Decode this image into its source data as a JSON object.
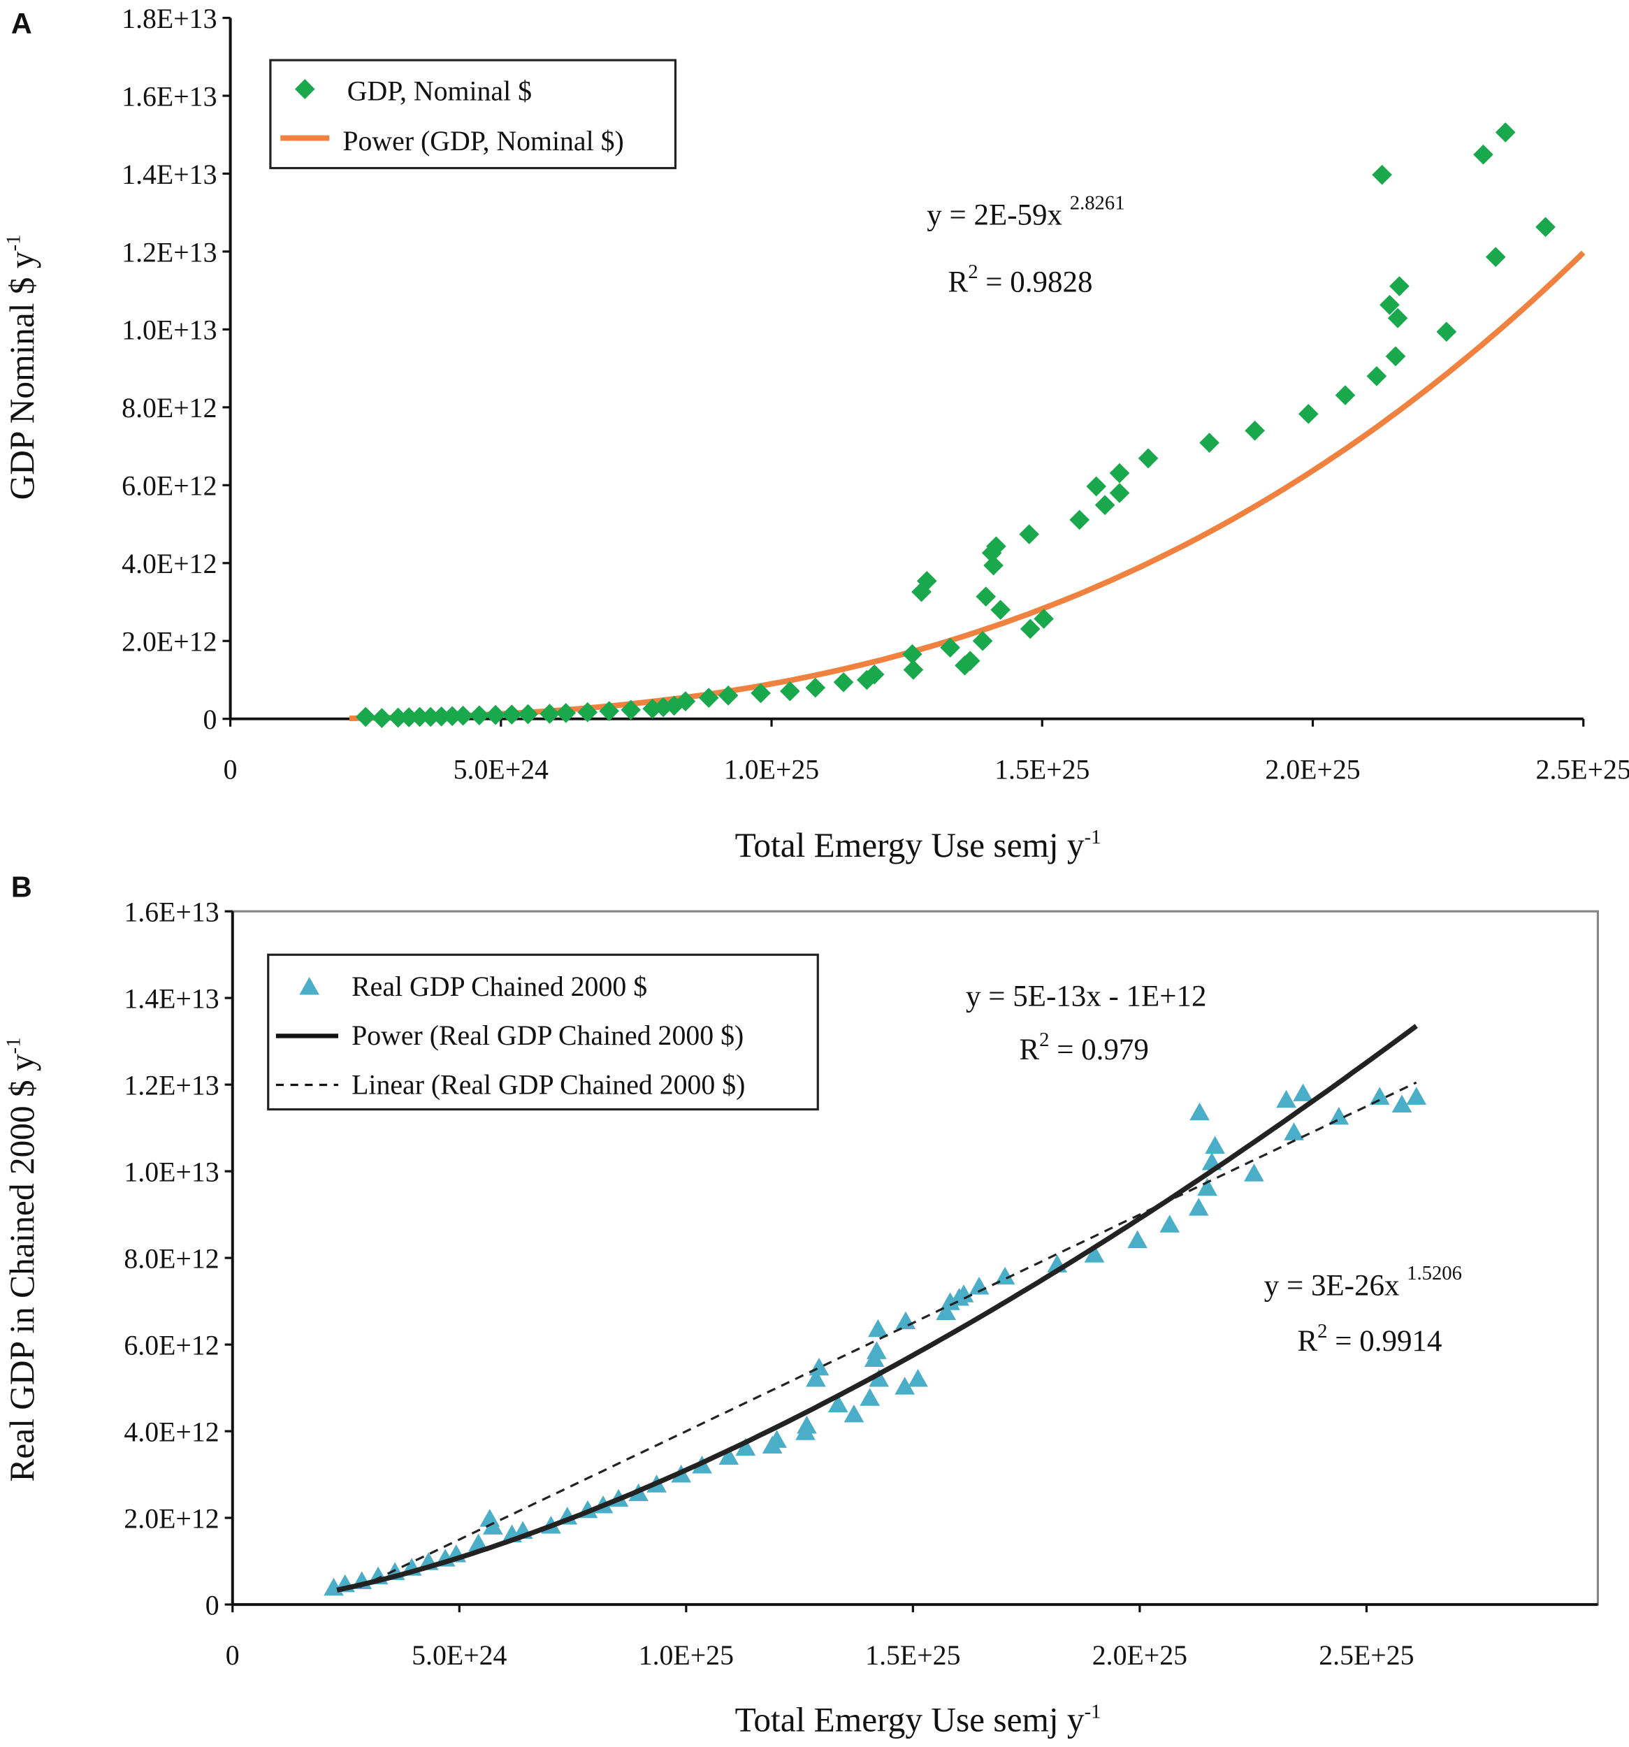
{
  "colors": {
    "nominal": "#19a84b",
    "fit_power_a": "#f0813f",
    "real": "#4aaec8",
    "fit_b": "#222222"
  },
  "chart_data": [
    {
      "panel": "A",
      "type": "scatter",
      "xlabel": "Total Emergy Use semj y",
      "xlabel_sup": "-1",
      "ylabel": "GDP Nominal $ y",
      "ylabel_sup": "-1",
      "xlim": [
        0,
        2.5e+25
      ],
      "ylim": [
        0,
        18000000000000.0
      ],
      "xticks": [
        {
          "v": 0,
          "label": "0"
        },
        {
          "v": 5e+24,
          "label": "5.0E+24"
        },
        {
          "v": 1e+25,
          "label": "1.0E+25"
        },
        {
          "v": 1.5e+25,
          "label": "1.5E+25"
        },
        {
          "v": 2e+25,
          "label": "2.0E+25"
        },
        {
          "v": 2.5e+25,
          "label": "2.5E+25"
        }
      ],
      "yticks": [
        {
          "v": 0,
          "label": "0"
        },
        {
          "v": 2000000000000.0,
          "label": "2.0E+12"
        },
        {
          "v": 4000000000000.0,
          "label": "4.0E+12"
        },
        {
          "v": 6000000000000.0,
          "label": "6.0E+12"
        },
        {
          "v": 8000000000000.0,
          "label": "8.0E+12"
        },
        {
          "v": 10000000000000.0,
          "label": "1.0E+13"
        },
        {
          "v": 12000000000000.0,
          "label": "1.2E+13"
        },
        {
          "v": 14000000000000.0,
          "label": "1.4E+13"
        },
        {
          "v": 16000000000000.0,
          "label": "1.6E+13"
        },
        {
          "v": 18000000000000.0,
          "label": "1.8E+13"
        }
      ],
      "legend": {
        "position": "top-left",
        "entries": [
          "GDP, Nominal $",
          "Power (GDP, Nominal $)"
        ]
      },
      "equation": {
        "main": "y = 2E-59x ",
        "exp": "2.8261",
        "r2_prefix": "R",
        "r2_sup": "2",
        "r2_value": " = 0.9828"
      },
      "series": [
        {
          "name": "GDP, Nominal $",
          "marker": "diamond",
          "unit_x": 1e+24,
          "unit_y": 1000000000000.0,
          "points": [
            [
              2.5,
              0.05
            ],
            [
              2.8,
              0.02
            ],
            [
              3.1,
              0.03
            ],
            [
              3.3,
              0.04
            ],
            [
              3.5,
              0.05
            ],
            [
              3.7,
              0.05
            ],
            [
              3.9,
              0.06
            ],
            [
              4.1,
              0.07
            ],
            [
              4.3,
              0.08
            ],
            [
              4.6,
              0.09
            ],
            [
              4.9,
              0.1
            ],
            [
              5.2,
              0.11
            ],
            [
              5.5,
              0.12
            ],
            [
              5.9,
              0.13
            ],
            [
              6.2,
              0.15
            ],
            [
              6.6,
              0.17
            ],
            [
              7.0,
              0.2
            ],
            [
              7.4,
              0.23
            ],
            [
              7.8,
              0.26
            ],
            [
              8.0,
              0.3
            ],
            [
              8.2,
              0.34
            ],
            [
              8.41,
              0.45
            ],
            [
              8.84,
              0.54
            ],
            [
              9.2,
              0.6
            ],
            [
              9.8,
              0.66
            ],
            [
              10.34,
              0.71
            ],
            [
              10.81,
              0.8
            ],
            [
              11.33,
              0.94
            ],
            [
              11.76,
              1.0
            ],
            [
              11.9,
              1.14
            ],
            [
              12.62,
              1.26
            ],
            [
              13.57,
              1.37
            ],
            [
              13.67,
              1.49
            ],
            [
              12.6,
              1.66
            ],
            [
              13.3,
              1.83
            ],
            [
              13.9,
              2.0
            ],
            [
              14.78,
              2.31
            ],
            [
              15.03,
              2.57
            ],
            [
              14.23,
              2.8
            ],
            [
              12.77,
              3.26
            ],
            [
              12.87,
              3.54
            ],
            [
              13.96,
              3.14
            ],
            [
              14.1,
              3.94
            ],
            [
              14.07,
              4.26
            ],
            [
              14.15,
              4.43
            ],
            [
              14.76,
              4.74
            ],
            [
              15.69,
              5.11
            ],
            [
              16.16,
              5.49
            ],
            [
              16.43,
              5.8
            ],
            [
              16.0,
              5.97
            ],
            [
              16.43,
              6.31
            ],
            [
              16.96,
              6.69
            ],
            [
              18.09,
              7.09
            ],
            [
              18.93,
              7.4
            ],
            [
              19.92,
              7.83
            ],
            [
              20.6,
              8.31
            ],
            [
              21.18,
              8.8
            ],
            [
              21.53,
              9.31
            ],
            [
              22.47,
              9.94
            ],
            [
              21.57,
              10.29
            ],
            [
              21.42,
              10.63
            ],
            [
              21.6,
              11.11
            ],
            [
              23.38,
              11.86
            ],
            [
              24.3,
              12.63
            ],
            [
              21.28,
              13.97
            ],
            [
              23.15,
              14.49
            ],
            [
              23.56,
              15.06
            ]
          ]
        },
        {
          "name": "Power (GDP, Nominal $)",
          "type": "power",
          "a": 2e-59,
          "b": 2.8261,
          "x_range": [
            2.2e+24,
            2.5e+25
          ]
        }
      ]
    },
    {
      "panel": "B",
      "type": "scatter",
      "xlabel": "Total Emergy Use semj y",
      "xlabel_sup": "-1",
      "ylabel": "Real GDP in Chained 2000 $ y",
      "ylabel_sup": "-1",
      "xlim": [
        0,
        3.01e+25
      ],
      "ylim": [
        0,
        16000000000000.0
      ],
      "xticks": [
        {
          "v": 0,
          "label": "0"
        },
        {
          "v": 5e+24,
          "label": "5.0E+24"
        },
        {
          "v": 1e+25,
          "label": "1.0E+25"
        },
        {
          "v": 1.5e+25,
          "label": "1.5E+25"
        },
        {
          "v": 2e+25,
          "label": "2.0E+25"
        },
        {
          "v": 2.5e+25,
          "label": "2.5E+25"
        }
      ],
      "yticks": [
        {
          "v": 0,
          "label": "0"
        },
        {
          "v": 2000000000000.0,
          "label": "2.0E+12"
        },
        {
          "v": 4000000000000.0,
          "label": "4.0E+12"
        },
        {
          "v": 6000000000000.0,
          "label": "6.0E+12"
        },
        {
          "v": 8000000000000.0,
          "label": "8.0E+12"
        },
        {
          "v": 10000000000000.0,
          "label": "1.0E+13"
        },
        {
          "v": 12000000000000.0,
          "label": "1.2E+13"
        },
        {
          "v": 14000000000000.0,
          "label": "1.4E+13"
        },
        {
          "v": 16000000000000.0,
          "label": "1.6E+13"
        }
      ],
      "legend": {
        "position": "top-left",
        "entries": [
          "Real GDP Chained 2000 $",
          "Power (Real GDP Chained 2000 $)",
          "Linear (Real GDP Chained 2000 $)"
        ]
      },
      "equation_linear": {
        "main": "y = 5E-13x - 1E+12",
        "r2_prefix": "R",
        "r2_sup": "2",
        "r2_value": " = 0.979"
      },
      "equation_power": {
        "main": "y = 3E-26x ",
        "exp": "1.5206",
        "r2_prefix": "R",
        "r2_sup": "2",
        "r2_value": " = 0.9914"
      },
      "series": [
        {
          "name": "Real GDP Chained 2000 $",
          "marker": "triangle",
          "unit_x": 1e+24,
          "unit_y": 1000000000000.0,
          "points": [
            [
              2.23,
              0.36
            ],
            [
              2.48,
              0.44
            ],
            [
              2.85,
              0.51
            ],
            [
              3.21,
              0.62
            ],
            [
              3.58,
              0.72
            ],
            [
              3.95,
              0.82
            ],
            [
              4.32,
              0.95
            ],
            [
              4.69,
              1.03
            ],
            [
              4.93,
              1.13
            ],
            [
              5.42,
              1.38
            ],
            [
              5.67,
              1.95
            ],
            [
              5.74,
              1.77
            ],
            [
              6.16,
              1.59
            ],
            [
              6.4,
              1.67
            ],
            [
              7.02,
              1.79
            ],
            [
              7.38,
              2.0
            ],
            [
              7.83,
              2.15
            ],
            [
              8.17,
              2.26
            ],
            [
              8.51,
              2.41
            ],
            [
              8.95,
              2.54
            ],
            [
              9.35,
              2.74
            ],
            [
              9.89,
              2.97
            ],
            [
              10.35,
              3.18
            ],
            [
              10.94,
              3.38
            ],
            [
              11.31,
              3.59
            ],
            [
              11.9,
              3.64
            ],
            [
              12.0,
              3.77
            ],
            [
              12.63,
              3.95
            ],
            [
              12.66,
              4.1
            ],
            [
              13.7,
              4.36
            ],
            [
              13.35,
              4.59
            ],
            [
              14.05,
              4.74
            ],
            [
              14.82,
              5.0
            ],
            [
              15.11,
              5.18
            ],
            [
              14.25,
              5.18
            ],
            [
              12.86,
              5.18
            ],
            [
              12.93,
              5.44
            ],
            [
              14.15,
              5.64
            ],
            [
              14.2,
              5.82
            ],
            [
              14.23,
              6.33
            ],
            [
              14.84,
              6.51
            ],
            [
              15.73,
              6.72
            ],
            [
              15.82,
              6.95
            ],
            [
              16.02,
              7.05
            ],
            [
              16.12,
              7.13
            ],
            [
              16.46,
              7.31
            ],
            [
              17.03,
              7.54
            ],
            [
              18.18,
              7.82
            ],
            [
              19.0,
              8.05
            ],
            [
              19.95,
              8.38
            ],
            [
              20.66,
              8.74
            ],
            [
              21.3,
              9.13
            ],
            [
              21.49,
              9.59
            ],
            [
              21.59,
              10.18
            ],
            [
              21.66,
              10.56
            ],
            [
              22.52,
              9.92
            ],
            [
              21.32,
              11.33
            ],
            [
              23.4,
              10.87
            ],
            [
              23.23,
              11.62
            ],
            [
              23.6,
              11.77
            ],
            [
              24.39,
              11.23
            ],
            [
              25.29,
              11.69
            ],
            [
              25.78,
              11.51
            ],
            [
              26.1,
              11.69
            ]
          ]
        },
        {
          "name": "Power (Real GDP Chained 2000 $)",
          "type": "power",
          "a": 3e-26,
          "b": 1.5206,
          "x_range": [
            2.3e+24,
            2.61e+25
          ]
        },
        {
          "name": "Linear (Real GDP Chained 2000 $)",
          "type": "linear",
          "slope": 5e-13,
          "intercept": -1000000000000.0,
          "x_range": [
            2.8e+24,
            2.61e+25
          ]
        }
      ]
    }
  ]
}
